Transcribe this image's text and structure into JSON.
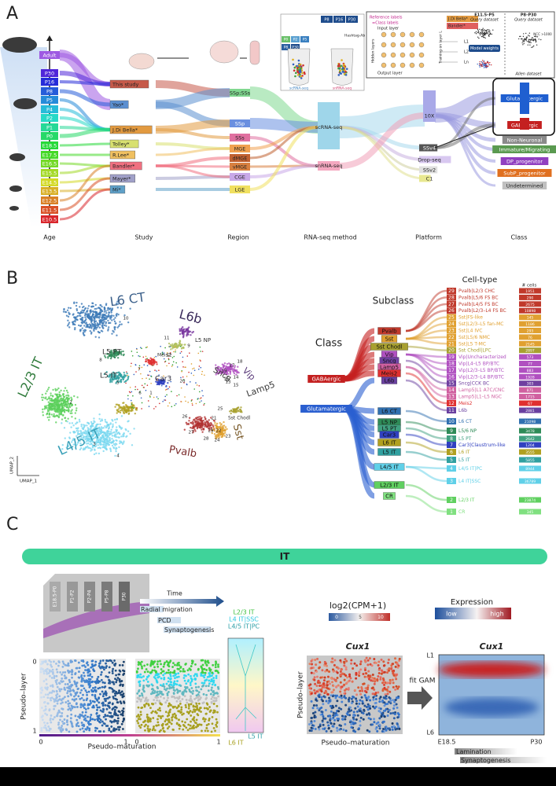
{
  "panel_a": {
    "label": "A",
    "axis_labels": [
      "Age",
      "Study",
      "Region",
      "RNA-seq method",
      "Platform",
      "Class"
    ],
    "ages": [
      "Adult",
      "P30",
      "P16",
      "P8",
      "P5",
      "P4",
      "P2",
      "P1",
      "P0",
      "E18.5",
      "E17.5",
      "E16.5",
      "E15.5",
      "E14.5",
      "E13.5",
      "E12.5",
      "E11.5",
      "E10.5"
    ],
    "studies": [
      "This study",
      "Yao*",
      "J.Di Bella*",
      "Tolley*",
      "R.Lee*",
      "Bandler*",
      "Mayer*",
      "Mi*"
    ],
    "regions": [
      "SSp;SSs",
      "SSp",
      "SSs",
      "MGE",
      "dMGE",
      "vMGE",
      "CGE",
      "LGE"
    ],
    "methods": [
      "scRNA-seq",
      "snRNA-seq"
    ],
    "platforms": [
      "10X",
      "SSv4",
      "Drop-seq",
      "SSv2",
      "C1"
    ],
    "classes": [
      "Glutamatergic",
      "GABAergic",
      "Non-Neuronal",
      "Immature/Migrating",
      "DP_progenitor",
      "SubP_progenitor",
      "Undetermined"
    ],
    "inset": {
      "tiles_top": [
        "P8",
        "P16",
        "P30"
      ],
      "tiles_bottom": [
        "P0",
        "P2",
        "P5",
        "P8",
        "P30"
      ],
      "hashtag": "Hashtag-Ab",
      "scrna": "scRNA-seq",
      "snrna": "snRNA-seq",
      "reference_labels": "Reference labels",
      "class_labels": "=Class labels",
      "input_layer": "Input layer",
      "hidden_layers": "Hidden layers",
      "output_layer": "Output layer",
      "training": "Training on layer L",
      "refs": [
        "J.Di Bella*",
        "Bandler*"
      ],
      "layers": [
        "L1",
        "L2",
        "Ln"
      ],
      "query1": "E11.5–P5",
      "query2": "P8–P30",
      "query_sub": "Query dataset",
      "model_weights": "Model weights",
      "allen": "Allen dataset",
      "ncc": "NCC >1000"
    }
  },
  "panel_b": {
    "label": "B",
    "umap_labels": [
      "L6 CT",
      "L6b",
      "L5 NP",
      "L5 PT",
      "L5 IT",
      "L2/3 IT",
      "L4/5 IT",
      "Car3",
      "Meis2",
      "Sncg",
      "Vip",
      "Lamp5",
      "Pvalb",
      "Sst",
      "Sst Chodl"
    ],
    "umap_numbers": [
      "10",
      "9",
      "12",
      "8",
      "7",
      "5",
      "2",
      "3",
      "4",
      "6",
      "11",
      "20",
      "13",
      "17",
      "18",
      "19",
      "14",
      "16",
      "15",
      "26",
      "27",
      "28",
      "29",
      "21",
      "22",
      "24",
      "23",
      "25",
      "1"
    ],
    "umap_x": "UMAP_1",
    "umap_y": "UMAP_2",
    "class_title": "Class",
    "classes": [
      "GABAergic",
      "Glutamatergic"
    ],
    "subclass_title": "Subclass",
    "subclasses": [
      "Pvalb",
      "Sst",
      "Sst Chodl",
      "Vip",
      "Sncg",
      "Lamp5",
      "Meis2",
      "L6b",
      "L6 CT",
      "L5 NP",
      "L5 PT",
      "Car3",
      "L6 IT",
      "L5 IT",
      "L4/5 IT",
      "L2/3 IT",
      "CR"
    ],
    "celltype_title": "Cell-type",
    "cells_title": "# cells",
    "celltypes": [
      {
        "id": "29",
        "name": "Pvalb|L2/3 CHC",
        "cells": "1951"
      },
      {
        "id": "28",
        "name": "Pvalb|L5/6 FS BC",
        "cells": "290"
      },
      {
        "id": "27",
        "name": "Pvalb|L4/5 FS BC",
        "cells": "2675"
      },
      {
        "id": "26",
        "name": "Pvalb|L2/3–L4 FS BC",
        "cells": "10898"
      },
      {
        "id": "25",
        "name": "Sst|FS-like",
        "cells": "145"
      },
      {
        "id": "24",
        "name": "Sst|L2/3–L5 fan-MC",
        "cells": "1186"
      },
      {
        "id": "23",
        "name": "Sst|L4 IVC",
        "cells": "293"
      },
      {
        "id": "22",
        "name": "Sst|L5/6 NMC",
        "cells": "76"
      },
      {
        "id": "21",
        "name": "Sst|L5 T-MC",
        "cells": "2145"
      },
      {
        "id": "20",
        "name": "Sst Chodl|LPC",
        "cells": "2897"
      },
      {
        "id": "19",
        "name": "Vip|Uncharacterized",
        "cells": "573"
      },
      {
        "id": "18",
        "name": "Vip|L4–L5 BP/BTC",
        "cells": "77"
      },
      {
        "id": "17",
        "name": "Vip|L2/3–L5 BP/BTC",
        "cells": "883"
      },
      {
        "id": "16",
        "name": "Vip|L2/3–L4 BP/BTC",
        "cells": "1928"
      },
      {
        "id": "15",
        "name": "Sncg|CCK BC",
        "cells": "303"
      },
      {
        "id": "14",
        "name": "Lamp5|L1 A7C/CNC",
        "cells": "871"
      },
      {
        "id": "13",
        "name": "Lamp5|L1–L5 NGC",
        "cells": "1715"
      },
      {
        "id": "12",
        "name": "Meis2",
        "cells": "67"
      },
      {
        "id": "11",
        "name": "L6b",
        "cells": "2881"
      },
      {
        "id": "10",
        "name": "L6 CT",
        "cells": "21098"
      },
      {
        "id": "9",
        "name": "L5/6 NP",
        "cells": "3478"
      },
      {
        "id": "8",
        "name": "L5 PT",
        "cells": "2642"
      },
      {
        "id": "7",
        "name": "Car3|Claustrum-like",
        "cells": "1204"
      },
      {
        "id": "6",
        "name": "L6 IT",
        "cells": "3555"
      },
      {
        "id": "5",
        "name": "L5 IT",
        "cells": "5855"
      },
      {
        "id": "4",
        "name": "L4/5 IT|PC",
        "cells": "8944"
      },
      {
        "id": "3",
        "name": "L4 IT|SSC",
        "cells": "36789"
      },
      {
        "id": "2",
        "name": "L2/3 IT",
        "cells": "23874"
      },
      {
        "id": "1",
        "name": "CR",
        "cells": "345"
      }
    ]
  },
  "panel_c": {
    "label": "C",
    "banner": "IT",
    "stages": [
      "E18.5-P0",
      "P1-P2",
      "P2-P4",
      "P5-P8",
      "P30"
    ],
    "time": "Time",
    "radial_migration": "Radial migration",
    "pcd": "PCD",
    "synaptogenesis": "Synaptogenesis",
    "layers": [
      "L2/3 IT",
      "L4 IT|SSC",
      "L4/5 IT|PC"
    ],
    "l5": "L5 IT",
    "l6": "L6 IT",
    "y_label": "Pseudo–layer",
    "x_label": "Pseudo–maturation",
    "tick_0": "0",
    "tick_1": "1",
    "colorbar_title": "log2(CPM+1)",
    "colorbar_ticks": [
      "0",
      "5",
      "10"
    ],
    "expression": "Expression",
    "low": "low",
    "high": "high",
    "gene": "Cux1",
    "fit": "fit GAM",
    "layer_top": "L1",
    "layer_bottom": "L6",
    "time_start": "E18.5",
    "time_end": "P30",
    "lamination": "Lamination",
    "synaptogenesis_bar": "Synaptogenesis"
  }
}
